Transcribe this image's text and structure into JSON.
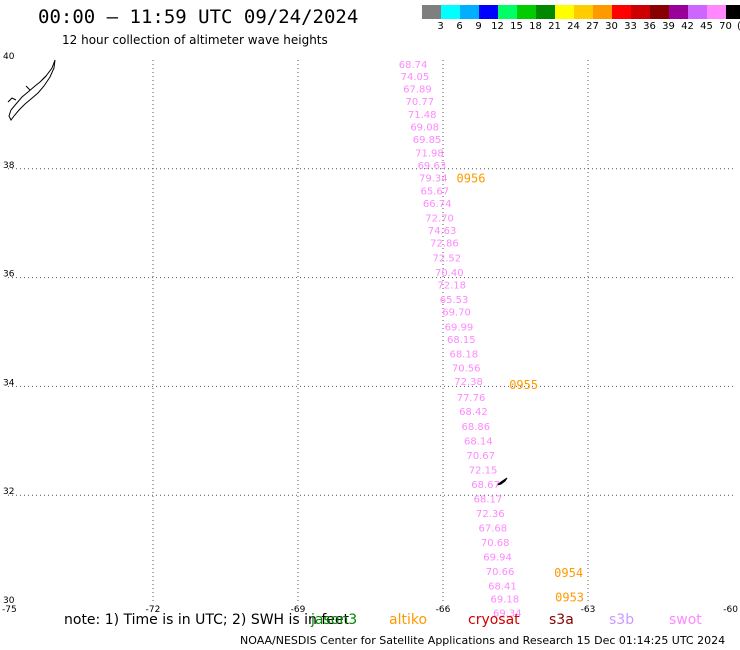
{
  "header": {
    "title": "00:00 – 11:59 UTC 09/24/2024",
    "subtitle": "12 hour collection of altimeter wave heights"
  },
  "colorbar": {
    "colors": [
      "#7f7f7f",
      "#00ffff",
      "#00b0ff",
      "#0000ff",
      "#00ff66",
      "#00cc00",
      "#008800",
      "#ffff00",
      "#ffcc00",
      "#ff9900",
      "#ff0000",
      "#cc0000",
      "#880000",
      "#990099",
      "#cc66ff",
      "#ff88ff",
      "#000000"
    ],
    "labels": [
      "3",
      "6",
      "9",
      "12",
      "15",
      "18",
      "21",
      "24",
      "27",
      "30",
      "33",
      "36",
      "39",
      "42",
      "45",
      "70",
      "(ft)"
    ]
  },
  "chart_data": {
    "type": "scatter",
    "title": "00:00 – 11:59 UTC 09/24/2024",
    "subtitle": "12 hour collection of altimeter wave heights",
    "xlim": [
      -75,
      -60
    ],
    "ylim": [
      30,
      40
    ],
    "x_ticks": [
      "-75",
      "-72",
      "-69",
      "-66",
      "-63",
      "-60"
    ],
    "y_ticks": [
      "40",
      "38",
      "36",
      "34",
      "32",
      "30"
    ],
    "grid": true,
    "series": [
      {
        "name": "swot",
        "color": "#ff88ff",
        "points": [
          {
            "lat": 39.85,
            "lon": -66.62,
            "v": "68.74"
          },
          {
            "lat": 39.63,
            "lon": -66.58,
            "v": "74.05"
          },
          {
            "lat": 39.4,
            "lon": -66.53,
            "v": "67.89"
          },
          {
            "lat": 39.17,
            "lon": -66.48,
            "v": "70.77"
          },
          {
            "lat": 38.93,
            "lon": -66.43,
            "v": "71.48"
          },
          {
            "lat": 38.7,
            "lon": -66.38,
            "v": "69.08"
          },
          {
            "lat": 38.47,
            "lon": -66.33,
            "v": "69.85"
          },
          {
            "lat": 38.23,
            "lon": -66.28,
            "v": "71.98"
          },
          {
            "lat": 38.0,
            "lon": -66.23,
            "v": "69.63"
          },
          {
            "lat": 37.77,
            "lon": -66.2,
            "v": "79.34"
          },
          {
            "lat": 37.53,
            "lon": -66.17,
            "v": "65.67"
          },
          {
            "lat": 37.3,
            "lon": -66.12,
            "v": "66.74"
          },
          {
            "lat": 37.03,
            "lon": -66.07,
            "v": "72.70"
          },
          {
            "lat": 36.8,
            "lon": -66.02,
            "v": "74.63"
          },
          {
            "lat": 36.57,
            "lon": -65.97,
            "v": "72.86"
          },
          {
            "lat": 36.3,
            "lon": -65.92,
            "v": "72.52"
          },
          {
            "lat": 36.03,
            "lon": -65.87,
            "v": "70.40"
          },
          {
            "lat": 35.8,
            "lon": -65.82,
            "v": "72.18"
          },
          {
            "lat": 35.53,
            "lon": -65.77,
            "v": "65.53"
          },
          {
            "lat": 35.3,
            "lon": -65.72,
            "v": "69.70"
          },
          {
            "lat": 35.03,
            "lon": -65.67,
            "v": "69.99"
          },
          {
            "lat": 34.8,
            "lon": -65.62,
            "v": "68.15"
          },
          {
            "lat": 34.53,
            "lon": -65.57,
            "v": "68.18"
          },
          {
            "lat": 34.27,
            "lon": -65.52,
            "v": "70.56"
          },
          {
            "lat": 34.03,
            "lon": -65.47,
            "v": "72.38"
          },
          {
            "lat": 33.73,
            "lon": -65.42,
            "v": "77.76"
          },
          {
            "lat": 33.47,
            "lon": -65.37,
            "v": "68.42"
          },
          {
            "lat": 33.2,
            "lon": -65.32,
            "v": "68.86"
          },
          {
            "lat": 32.93,
            "lon": -65.27,
            "v": "68.14"
          },
          {
            "lat": 32.67,
            "lon": -65.22,
            "v": "70.67"
          },
          {
            "lat": 32.4,
            "lon": -65.17,
            "v": "72.15"
          },
          {
            "lat": 32.13,
            "lon": -65.12,
            "v": "68.67"
          },
          {
            "lat": 31.87,
            "lon": -65.07,
            "v": "68.17"
          },
          {
            "lat": 31.6,
            "lon": -65.02,
            "v": "72.36"
          },
          {
            "lat": 31.33,
            "lon": -64.97,
            "v": "67.68"
          },
          {
            "lat": 31.07,
            "lon": -64.92,
            "v": "70.68"
          },
          {
            "lat": 30.8,
            "lon": -64.87,
            "v": "69.94"
          },
          {
            "lat": 30.53,
            "lon": -64.82,
            "v": "70.66"
          },
          {
            "lat": 30.27,
            "lon": -64.77,
            "v": "68.41"
          },
          {
            "lat": 30.03,
            "lon": -64.72,
            "v": "69.18"
          },
          {
            "lat": 29.77,
            "lon": -64.67,
            "v": "69.34"
          }
        ]
      }
    ],
    "time_labels": [
      {
        "lat": 37.75,
        "lon": -65.72,
        "text": "0956",
        "color": "#ff9900"
      },
      {
        "lat": 33.95,
        "lon": -64.63,
        "text": "0955",
        "color": "#ff9900"
      },
      {
        "lat": 30.5,
        "lon": -63.7,
        "text": "0954",
        "color": "#ff9900"
      },
      {
        "lat": 30.05,
        "lon": -63.68,
        "text": "0953",
        "color": "#ff9900"
      }
    ]
  },
  "note": {
    "text": "note:  1) Time is in UTC; 2) SWH is in feet",
    "legend": [
      {
        "label": "jason3",
        "color": "#008800"
      },
      {
        "label": "altiko",
        "color": "#ff9900"
      },
      {
        "label": "cryosat",
        "color": "#cc0000"
      },
      {
        "label": "s3a",
        "color": "#880000"
      },
      {
        "label": "s3b",
        "color": "#cc99ff"
      },
      {
        "label": "swot",
        "color": "#ff88ff"
      }
    ]
  },
  "footer": "NOAA/NESDIS Center for Satellite Applications and Research    15 Dec 01:14:25 UTC 2024"
}
